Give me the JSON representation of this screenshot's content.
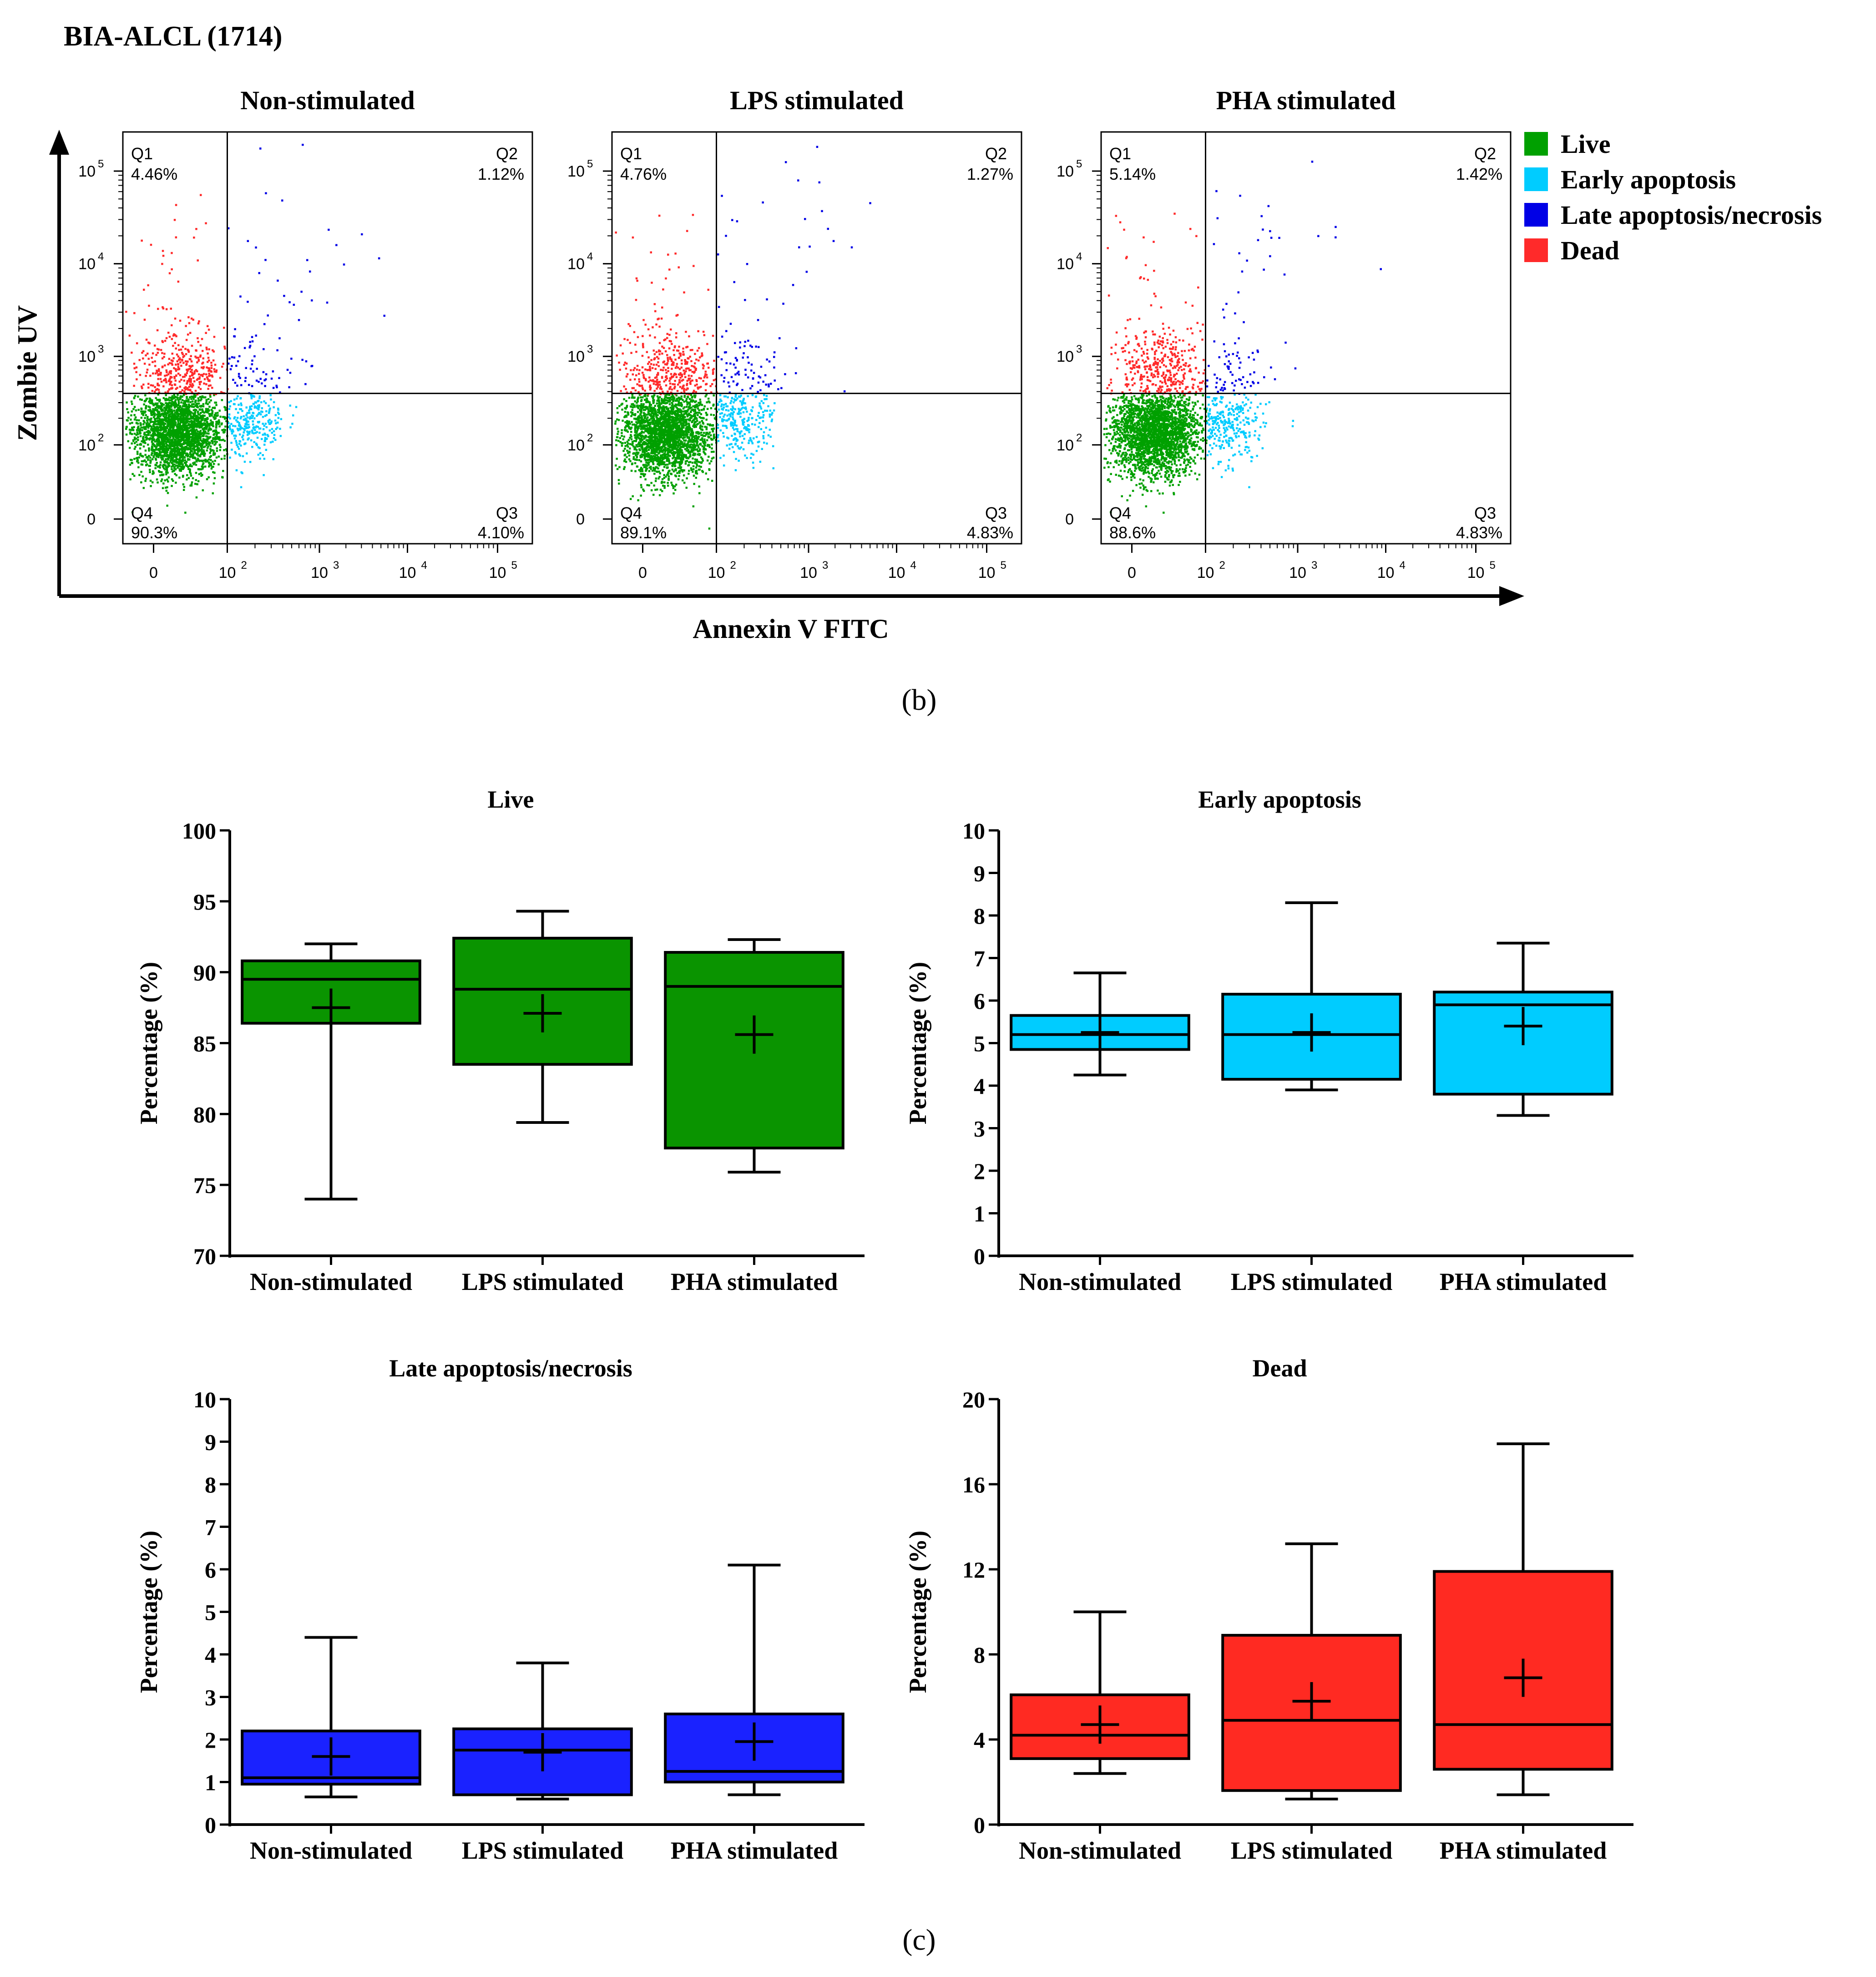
{
  "panel_b": {
    "title": "BIA-ALCL (1714)",
    "panel_label": "(b)",
    "ylabel": "Zombie UV",
    "xlabel": "Annexin V FITC",
    "x_ticks": [
      "0",
      "10",
      "10",
      "10",
      "10"
    ],
    "x_tick_exps": [
      "",
      "2",
      "3",
      "4",
      "5"
    ],
    "y_ticks": [
      "0",
      "10",
      "10",
      "10",
      "10"
    ],
    "y_tick_exps": [
      "",
      "2",
      "3",
      "4",
      "5"
    ],
    "legend": [
      {
        "label": "Live",
        "color": "#00a000"
      },
      {
        "label": "Early apoptosis",
        "color": "#00ccff"
      },
      {
        "label": "Late apoptosis/necrosis",
        "color": "#0000e6"
      },
      {
        "label": "Dead",
        "color": "#ff2a2a"
      }
    ],
    "plots": [
      {
        "title": "Non-stimulated",
        "q1_name": "Q1",
        "q1": "4.46%",
        "q2_name": "Q2",
        "q2": "1.12%",
        "q3_name": "Q3",
        "q3": "4.10%",
        "q4_name": "Q4",
        "q4": "90.3%"
      },
      {
        "title": "LPS stimulated",
        "q1_name": "Q1",
        "q1": "4.76%",
        "q2_name": "Q2",
        "q2": "1.27%",
        "q3_name": "Q3",
        "q3": "4.83%",
        "q4_name": "Q4",
        "q4": "89.1%"
      },
      {
        "title": "PHA stimulated",
        "q1_name": "Q1",
        "q1": "5.14%",
        "q2_name": "Q2",
        "q2": "1.42%",
        "q3_name": "Q3",
        "q3": "4.83%",
        "q4_name": "Q4",
        "q4": "88.6%"
      }
    ]
  },
  "panel_c": {
    "panel_label": "(c)"
  },
  "chart_data": [
    {
      "type": "box",
      "title": "Live",
      "ylabel": "Percentage (%)",
      "ylim": [
        70,
        100
      ],
      "yticks": [
        70,
        75,
        80,
        85,
        90,
        95,
        100
      ],
      "categories": [
        "Non-stimulated",
        "LPS stimulated",
        "PHA stimulated"
      ],
      "color": "#0a9400",
      "boxes": [
        {
          "min": 74.0,
          "q1": 86.4,
          "median": 89.5,
          "q3": 90.8,
          "max": 92.0,
          "mean": 87.5
        },
        {
          "min": 79.4,
          "q1": 83.5,
          "median": 88.8,
          "q3": 92.4,
          "max": 94.3,
          "mean": 87.1
        },
        {
          "min": 75.9,
          "q1": 77.6,
          "median": 89.0,
          "q3": 91.4,
          "max": 92.3,
          "mean": 85.6
        }
      ]
    },
    {
      "type": "box",
      "title": "Early apoptosis",
      "ylabel": "Percentage (%)",
      "ylim": [
        0,
        10
      ],
      "yticks": [
        0,
        1,
        2,
        3,
        4,
        5,
        6,
        7,
        8,
        9,
        10
      ],
      "categories": [
        "Non-stimulated",
        "LPS stimulated",
        "PHA stimulated"
      ],
      "color": "#00ccff",
      "boxes": [
        {
          "min": 4.25,
          "q1": 4.85,
          "median": 5.2,
          "q3": 5.65,
          "max": 6.65,
          "mean": 5.25
        },
        {
          "min": 3.9,
          "q1": 4.15,
          "median": 5.2,
          "q3": 6.15,
          "max": 8.3,
          "mean": 5.25
        },
        {
          "min": 3.3,
          "q1": 3.8,
          "median": 5.9,
          "q3": 6.2,
          "max": 7.35,
          "mean": 5.4
        }
      ]
    },
    {
      "type": "box",
      "title": "Late apoptosis/necrosis",
      "ylabel": "Percentage (%)",
      "ylim": [
        0,
        10
      ],
      "yticks": [
        0,
        1,
        2,
        3,
        4,
        5,
        6,
        7,
        8,
        9,
        10
      ],
      "categories": [
        "Non-stimulated",
        "LPS stimulated",
        "PHA stimulated"
      ],
      "color": "#1a22ff",
      "boxes": [
        {
          "min": 0.65,
          "q1": 0.95,
          "median": 1.1,
          "q3": 2.2,
          "max": 4.4,
          "mean": 1.6
        },
        {
          "min": 0.6,
          "q1": 0.7,
          "median": 1.75,
          "q3": 2.25,
          "max": 3.8,
          "mean": 1.7
        },
        {
          "min": 0.7,
          "q1": 1.0,
          "median": 1.25,
          "q3": 2.6,
          "max": 6.1,
          "mean": 1.95
        }
      ]
    },
    {
      "type": "box",
      "title": "Dead",
      "ylabel": "Percentage (%)",
      "ylim": [
        0,
        20
      ],
      "yticks": [
        0,
        4,
        8,
        12,
        16,
        20
      ],
      "categories": [
        "Non-stimulated",
        "LPS stimulated",
        "PHA stimulated"
      ],
      "color": "#ff2a22",
      "boxes": [
        {
          "min": 2.4,
          "q1": 3.1,
          "median": 4.2,
          "q3": 6.1,
          "max": 10.0,
          "mean": 4.7
        },
        {
          "min": 1.2,
          "q1": 1.6,
          "median": 4.9,
          "q3": 8.9,
          "max": 13.2,
          "mean": 5.8
        },
        {
          "min": 1.4,
          "q1": 2.6,
          "median": 4.7,
          "q3": 11.9,
          "max": 17.9,
          "mean": 6.9
        }
      ]
    }
  ]
}
